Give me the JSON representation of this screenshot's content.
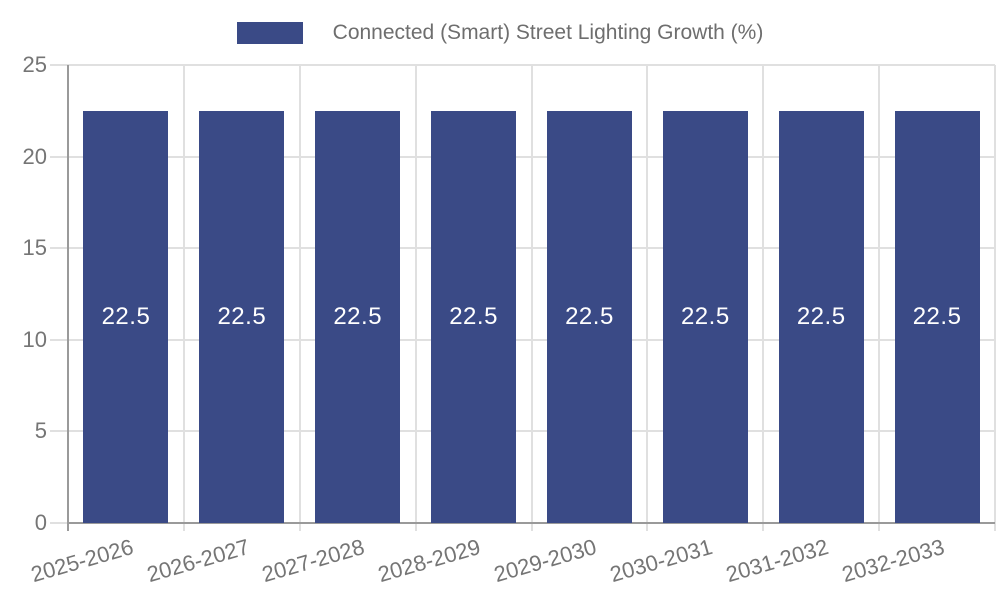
{
  "legend": {
    "label": "Connected (Smart) Street Lighting Growth (%)"
  },
  "chart_data": {
    "type": "bar",
    "title": "",
    "categories": [
      "2025-2026",
      "2026-2027",
      "2027-2028",
      "2028-2029",
      "2029-2030",
      "2030-2031",
      "2031-2032",
      "2032-2033"
    ],
    "series": [
      {
        "name": "Connected (Smart) Street Lighting Growth (%)",
        "values": [
          22.5,
          22.5,
          22.5,
          22.5,
          22.5,
          22.5,
          22.5,
          22.5
        ]
      }
    ],
    "value_labels": [
      "22.5",
      "22.5",
      "22.5",
      "22.5",
      "22.5",
      "22.5",
      "22.5",
      "22.5"
    ],
    "xlabel": "",
    "ylabel": "",
    "ylim": [
      0,
      25
    ],
    "yticks": [
      0,
      5,
      10,
      15,
      20,
      25
    ],
    "grid": true,
    "legend_position": "top",
    "colors": {
      "bar": "#3A4A86",
      "axis_line": "#9A9A9A",
      "gridline": "#E0E0E0",
      "tick_label": "#757575",
      "legend_text": "#6E6E6E",
      "bar_value_label": "#FFFFFF",
      "background": "#FFFFFF"
    }
  }
}
